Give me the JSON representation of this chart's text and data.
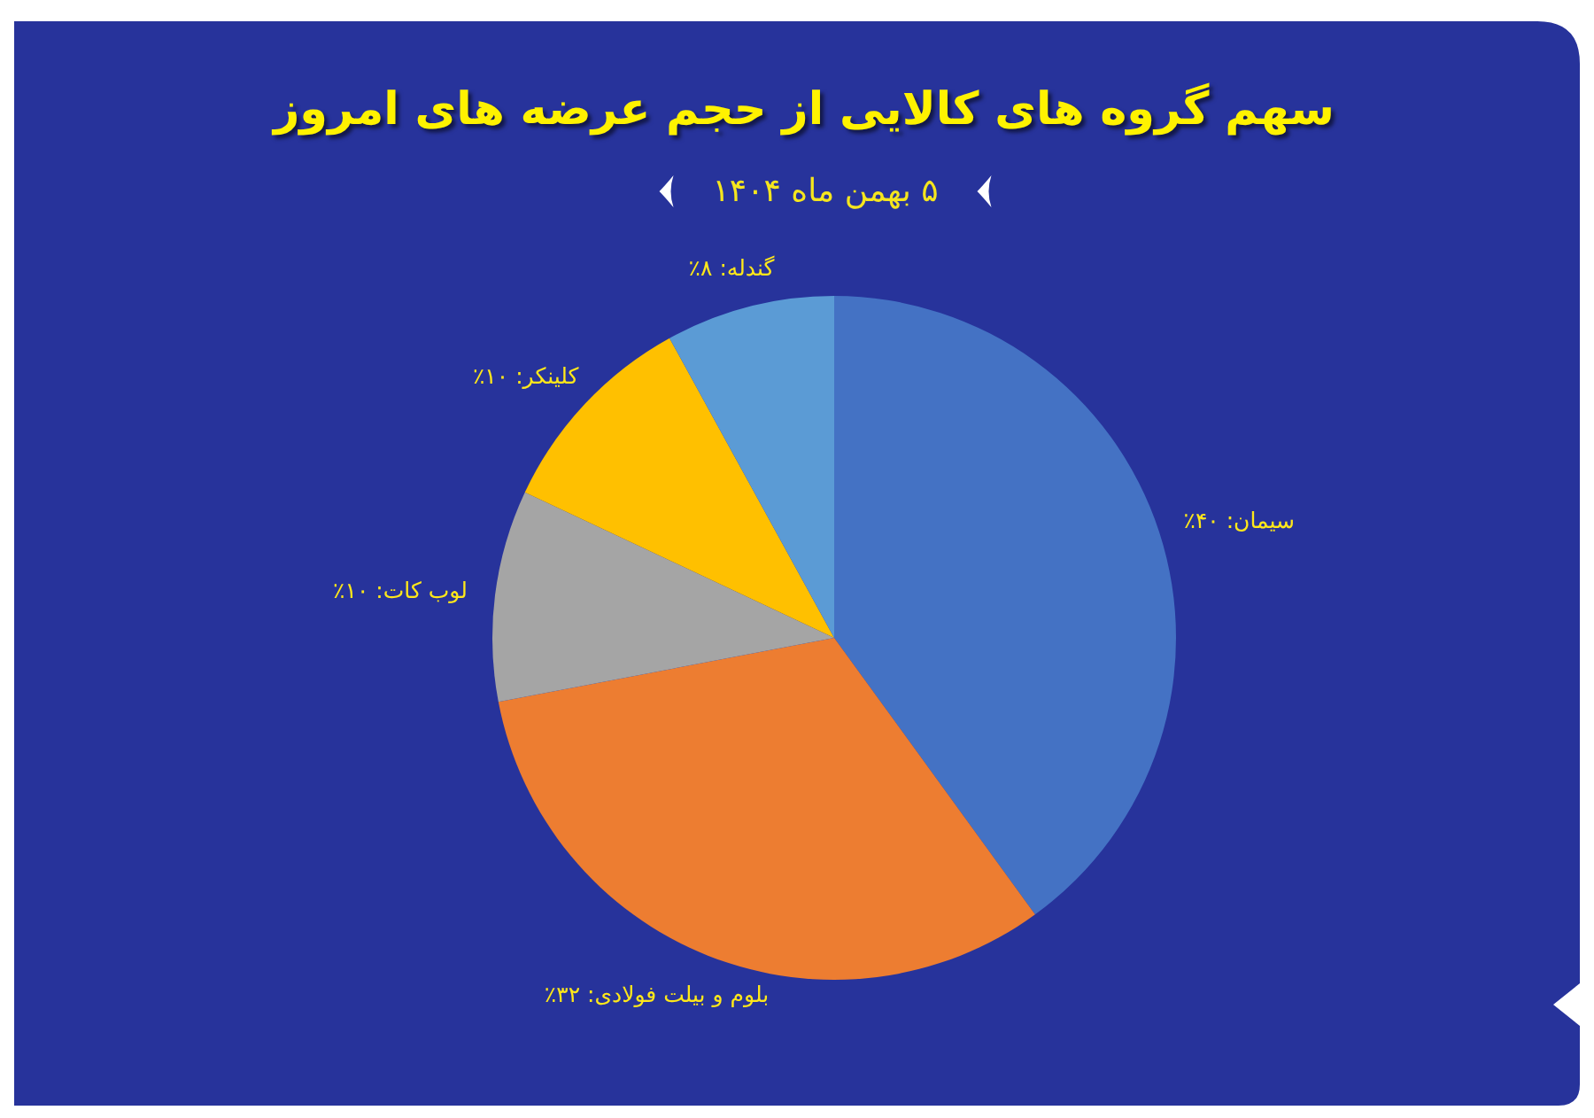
{
  "chart_data": {
    "type": "pie",
    "title": "سهم گروه های کالایی از حجم عرضه های امروز",
    "subtitle": "۵ بهمن ماه ۱۴۰۴",
    "categories": [
      "سیمان",
      "بلوم و بیلت فولادی",
      "لوب کات",
      "کلینکر",
      "گندله"
    ],
    "values": [
      40,
      32,
      10,
      10,
      8
    ],
    "colors": [
      "#4472c4",
      "#ed7d31",
      "#a5a5a5",
      "#ffc000",
      "#5b9bd5"
    ],
    "value_labels": [
      "۴۰٪",
      "۳۲٪",
      "۱۰٪",
      "۱۰٪",
      "۸٪"
    ]
  }
}
